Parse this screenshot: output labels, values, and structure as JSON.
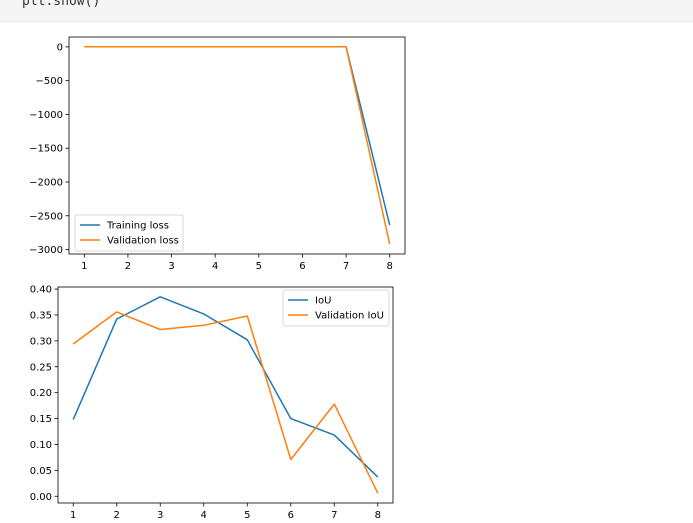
{
  "code_cell": {
    "code_text": "plt.show()"
  },
  "chart_data": [
    {
      "type": "line",
      "x": [
        1,
        2,
        3,
        4,
        5,
        6,
        7,
        8
      ],
      "series": [
        {
          "name": "Training loss",
          "color": "#1f77b4",
          "values": [
            0.5,
            0.4,
            0.3,
            0.3,
            0.4,
            2.0,
            0.5,
            -2640
          ]
        },
        {
          "name": "Validation loss",
          "color": "#ff7f0e",
          "values": [
            0.5,
            0.4,
            0.3,
            0.3,
            0.4,
            2.0,
            0.5,
            -2920
          ]
        }
      ],
      "xticks": [
        "1",
        "2",
        "3",
        "4",
        "5",
        "6",
        "7",
        "8"
      ],
      "yticks": [
        0,
        -500,
        -1000,
        -1500,
        -2000,
        -2500,
        -3000
      ],
      "ytick_labels": [
        "0",
        "−500",
        "−1000",
        "−1500",
        "−2000",
        "−2500",
        "−3000"
      ],
      "xlim": [
        0.65,
        8.35
      ],
      "ylim": [
        -3066,
        146
      ],
      "legend_position": "lower-left",
      "grid": false
    },
    {
      "type": "line",
      "x": [
        1,
        2,
        3,
        4,
        5,
        6,
        7,
        8
      ],
      "series": [
        {
          "name": "IoU",
          "color": "#1f77b4",
          "values": [
            0.148,
            0.342,
            0.385,
            0.352,
            0.302,
            0.15,
            0.118,
            0.037
          ]
        },
        {
          "name": "Validation IoU",
          "color": "#ff7f0e",
          "values": [
            0.294,
            0.356,
            0.322,
            0.33,
            0.348,
            0.071,
            0.178,
            0.006
          ]
        }
      ],
      "xticks": [
        "1",
        "2",
        "3",
        "4",
        "5",
        "6",
        "7",
        "8"
      ],
      "yticks": [
        0,
        0.05,
        0.1,
        0.15,
        0.2,
        0.25,
        0.3,
        0.35,
        0.4
      ],
      "ytick_labels": [
        "0.00",
        "0.05",
        "0.10",
        "0.15",
        "0.20",
        "0.25",
        "0.30",
        "0.35",
        "0.40"
      ],
      "xlim": [
        0.65,
        8.35
      ],
      "ylim": [
        -0.013,
        0.404
      ],
      "legend_position": "top-right",
      "grid": false
    }
  ]
}
